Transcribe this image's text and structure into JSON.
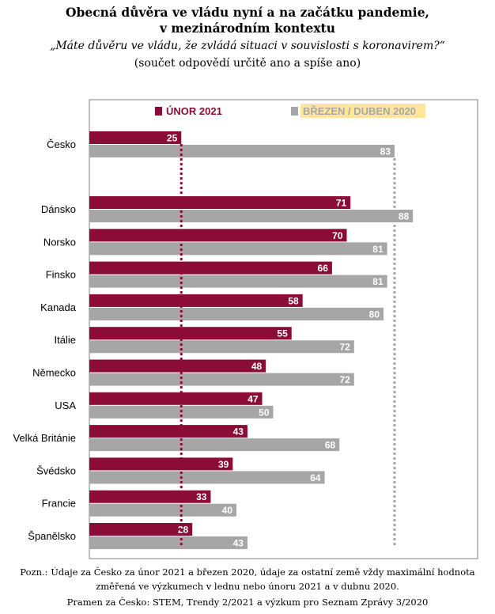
{
  "header": {
    "title_line1": "Obecná důvěra ve vládu nyní a na začátku pandemie,",
    "title_line2": "v mezinárodním kontextu",
    "question": "„Máte důvěru ve vládu, že zvládá situaci v souvislosti s koronavirem?“",
    "note": "(součet odpovědí určitě ano a spíše ano)"
  },
  "footer": {
    "note_line1": "Pozn.: Údaje za Česko za únor 2021 a březen 2020, údaje za ostatní země vždy maximální hodnota",
    "note_line2": "změřená ve výzkumech v lednu nebo únoru 2021 a v dubnu 2020.",
    "source": "Pramen za Česko: STEM, Trendy 2/2021 a výzkum pro Seznam Zprávy 3/2020"
  },
  "colors": {
    "series_2021": "#8b0d37",
    "series_2020": "#a6a6a6",
    "legend_highlight": "#ffe699",
    "legend_highlight_text": "#a6a6a6"
  },
  "chart_data": {
    "type": "bar",
    "orientation": "horizontal",
    "categories": [
      "Česko",
      "Dánsko",
      "Norsko",
      "Finsko",
      "Kanada",
      "Itálie",
      "Německo",
      "USA",
      "Velká Británie",
      "Švédsko",
      "Francie",
      "Španělsko"
    ],
    "series": [
      {
        "name": "ÚNOR 2021",
        "values": [
          25,
          71,
          70,
          66,
          58,
          55,
          48,
          47,
          43,
          39,
          33,
          28
        ]
      },
      {
        "name": "BŘEZEN / DUBEN 2020",
        "values": [
          83,
          88,
          81,
          81,
          80,
          72,
          72,
          50,
          68,
          64,
          40,
          43
        ]
      }
    ],
    "reference_lines": [
      {
        "series": "ÚNOR 2021",
        "value": 25
      },
      {
        "series": "BŘEZEN / DUBEN 2020",
        "value": 83
      }
    ],
    "legend": "top",
    "xlim": [
      0,
      100
    ],
    "data_labels": true
  }
}
